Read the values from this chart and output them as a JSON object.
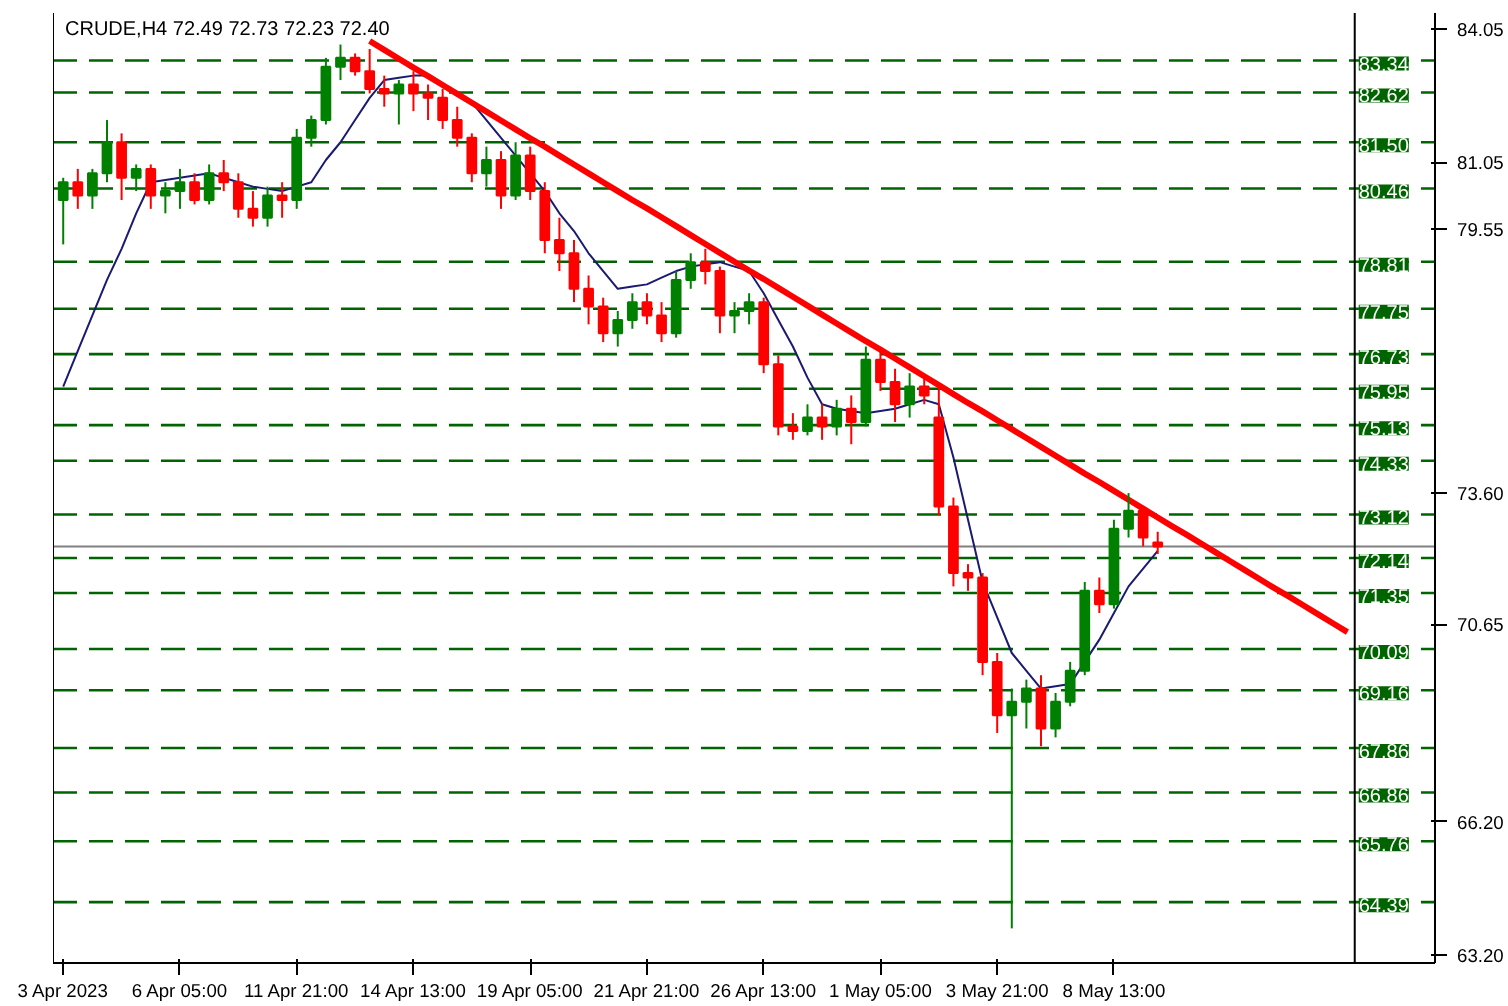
{
  "chart_data": {
    "type": "candlestick",
    "title": "CRUDE,H4  72.49 72.73 72.23 72.40",
    "categories": [
      "3 Apr 2023",
      null,
      null,
      null,
      null,
      null,
      null,
      null,
      "6 Apr 05:00",
      null,
      null,
      null,
      null,
      null,
      null,
      null,
      "11 Apr 21:00",
      null,
      null,
      null,
      null,
      null,
      null,
      null,
      "14 Apr 13:00",
      null,
      null,
      null,
      null,
      null,
      null,
      null,
      "19 Apr 05:00",
      null,
      null,
      null,
      null,
      null,
      null,
      null,
      "21 Apr 21:00",
      null,
      null,
      null,
      null,
      null,
      null,
      null,
      "26 Apr 13:00",
      null,
      null,
      null,
      null,
      null,
      null,
      null,
      "1 May 05:00",
      null,
      null,
      null,
      null,
      null,
      null,
      null,
      "3 May 21:00",
      null,
      null,
      null,
      null,
      null,
      null,
      null,
      "8 May 13:00",
      null,
      null,
      null,
      null,
      null,
      null,
      null,
      null,
      null,
      null,
      null,
      null,
      null,
      null,
      null,
      null
    ],
    "ohlc": [
      [
        80.2,
        80.7,
        79.2,
        80.6
      ],
      [
        80.6,
        80.9,
        80.0,
        80.3
      ],
      [
        80.3,
        80.9,
        80.0,
        80.8
      ],
      [
        80.8,
        82.0,
        80.6,
        81.5
      ],
      [
        81.5,
        81.7,
        80.2,
        80.7
      ],
      [
        80.7,
        81.0,
        80.4,
        80.9
      ],
      [
        80.9,
        81.0,
        80.0,
        80.3
      ],
      [
        80.3,
        80.6,
        79.9,
        80.4
      ],
      [
        80.4,
        80.9,
        80.0,
        80.6
      ],
      [
        80.6,
        80.8,
        80.1,
        80.2
      ],
      [
        80.2,
        81.0,
        80.1,
        80.8
      ],
      [
        80.8,
        81.1,
        80.4,
        80.6
      ],
      [
        80.6,
        80.8,
        79.8,
        80.0
      ],
      [
        80.0,
        80.4,
        79.6,
        79.8
      ],
      [
        79.8,
        80.5,
        79.6,
        80.3
      ],
      [
        80.3,
        80.6,
        79.8,
        80.2
      ],
      [
        80.2,
        81.8,
        80.0,
        81.6
      ],
      [
        81.6,
        82.1,
        81.4,
        82.0
      ],
      [
        82.0,
        83.4,
        81.9,
        83.2
      ],
      [
        83.2,
        83.7,
        82.9,
        83.4
      ],
      [
        83.4,
        83.5,
        83.0,
        83.1
      ],
      [
        83.1,
        83.6,
        82.6,
        82.7
      ],
      [
        82.7,
        83.0,
        82.3,
        82.6
      ],
      [
        82.6,
        82.9,
        81.9,
        82.8
      ],
      [
        82.8,
        83.1,
        82.2,
        82.6
      ],
      [
        82.6,
        82.8,
        82.0,
        82.5
      ],
      [
        82.5,
        82.7,
        81.8,
        82.0
      ],
      [
        82.0,
        82.3,
        81.4,
        81.6
      ],
      [
        81.6,
        81.7,
        80.6,
        80.8
      ],
      [
        80.8,
        81.4,
        80.5,
        81.1
      ],
      [
        81.1,
        81.3,
        80.0,
        80.3
      ],
      [
        80.3,
        81.5,
        80.2,
        81.2
      ],
      [
        81.2,
        81.4,
        80.2,
        80.4
      ],
      [
        80.4,
        80.6,
        79.0,
        79.3
      ],
      [
        79.3,
        79.8,
        78.6,
        79.0
      ],
      [
        79.0,
        79.3,
        77.9,
        78.2
      ],
      [
        78.2,
        78.5,
        77.4,
        77.8
      ],
      [
        77.8,
        78.0,
        77.0,
        77.2
      ],
      [
        77.2,
        77.7,
        76.9,
        77.5
      ],
      [
        77.5,
        78.1,
        77.3,
        77.9
      ],
      [
        77.9,
        78.1,
        77.4,
        77.6
      ],
      [
        77.6,
        77.9,
        77.0,
        77.2
      ],
      [
        77.2,
        78.6,
        77.1,
        78.4
      ],
      [
        78.4,
        79.0,
        78.2,
        78.8
      ],
      [
        78.8,
        79.1,
        78.3,
        78.6
      ],
      [
        78.6,
        78.7,
        77.2,
        77.6
      ],
      [
        77.6,
        77.9,
        77.2,
        77.7
      ],
      [
        77.7,
        78.1,
        77.4,
        77.9
      ],
      [
        77.9,
        78.0,
        76.3,
        76.5
      ],
      [
        76.5,
        76.7,
        74.9,
        75.1
      ],
      [
        75.1,
        75.4,
        74.8,
        75.0
      ],
      [
        75.0,
        75.6,
        74.9,
        75.3
      ],
      [
        75.3,
        75.6,
        74.8,
        75.1
      ],
      [
        75.1,
        75.7,
        74.9,
        75.5
      ],
      [
        75.5,
        75.8,
        74.7,
        75.2
      ],
      [
        75.2,
        76.9,
        75.1,
        76.6
      ],
      [
        76.6,
        76.8,
        75.9,
        76.1
      ],
      [
        76.1,
        76.4,
        75.2,
        75.6
      ],
      [
        75.6,
        76.3,
        75.3,
        76.0
      ],
      [
        76.0,
        76.2,
        75.6,
        75.8
      ],
      [
        75.3,
        76.0,
        73.1,
        73.3
      ],
      [
        73.3,
        73.5,
        71.5,
        71.8
      ],
      [
        71.8,
        72.0,
        71.4,
        71.7
      ],
      [
        71.7,
        71.8,
        69.5,
        69.8
      ],
      [
        69.8,
        70.0,
        68.2,
        68.6
      ],
      [
        68.6,
        69.2,
        63.8,
        68.9
      ],
      [
        68.9,
        69.4,
        68.3,
        69.2
      ],
      [
        69.2,
        69.5,
        67.9,
        68.3
      ],
      [
        68.3,
        69.1,
        68.1,
        68.9
      ],
      [
        68.9,
        69.8,
        68.8,
        69.6
      ],
      [
        69.6,
        71.6,
        69.5,
        71.4
      ],
      [
        71.4,
        71.7,
        70.9,
        71.1
      ],
      [
        71.1,
        73.0,
        71.0,
        72.8
      ],
      [
        72.8,
        73.6,
        72.6,
        73.2
      ],
      [
        73.2,
        73.3,
        72.4,
        72.6
      ],
      [
        72.49,
        72.73,
        72.23,
        72.4
      ],
      null,
      null,
      null,
      null,
      null,
      null,
      null,
      null,
      null,
      null,
      null,
      null,
      null
    ],
    "series": [
      {
        "type": "line",
        "color": "#1a1a70",
        "values": [
          76.0,
          76.8,
          77.6,
          78.4,
          79.1,
          79.9,
          80.6,
          80.65,
          80.7,
          80.75,
          80.8,
          80.7,
          80.6,
          80.5,
          80.45,
          80.4,
          80.5,
          80.6,
          81.1,
          81.5,
          82.0,
          82.5,
          82.9,
          82.95,
          83.0,
          83.0,
          82.8,
          82.6,
          82.4,
          82.0,
          81.6,
          81.2,
          80.8,
          80.4,
          79.9,
          79.5,
          79.0,
          78.6,
          78.2,
          78.25,
          78.3,
          78.45,
          78.6,
          78.7,
          78.75,
          78.8,
          78.7,
          78.6,
          78.1,
          77.5,
          76.9,
          76.2,
          75.6,
          75.5,
          75.45,
          75.4,
          75.45,
          75.5,
          75.6,
          75.7,
          75.6,
          74.4,
          73.0,
          71.6,
          70.8,
          70.0,
          69.6,
          69.2,
          69.25,
          69.3,
          69.8,
          70.3,
          70.9,
          71.5,
          71.9,
          72.3,
          null,
          null,
          null,
          null,
          null,
          null,
          null,
          null,
          null,
          null,
          null,
          null,
          null
        ]
      },
      {
        "type": "line",
        "color": "#ff0000",
        "values": [
          null,
          null,
          null,
          null,
          null,
          null,
          null,
          null,
          null,
          null,
          null,
          null,
          null,
          null,
          null,
          null,
          null,
          null,
          null,
          null,
          null,
          83.78,
          83.58,
          83.38,
          83.18,
          82.99,
          82.79,
          82.59,
          82.39,
          82.19,
          81.99,
          81.79,
          81.59,
          81.4,
          81.2,
          81.0,
          80.8,
          80.6,
          80.4,
          80.2,
          80.01,
          79.81,
          79.61,
          79.41,
          79.21,
          79.01,
          78.81,
          78.61,
          78.42,
          78.22,
          78.02,
          77.82,
          77.62,
          77.42,
          77.22,
          77.02,
          76.83,
          76.63,
          76.43,
          76.23,
          76.03,
          75.83,
          75.63,
          75.44,
          75.24,
          75.04,
          74.84,
          74.64,
          74.44,
          74.24,
          74.04,
          73.85,
          73.65,
          73.45,
          73.25,
          73.05,
          72.85,
          72.66,
          72.46,
          72.26,
          72.06,
          71.86,
          71.66,
          71.46,
          71.27,
          71.07,
          70.87,
          70.67,
          70.47
        ]
      }
    ],
    "ylim": [
      63.02,
      84.41
    ],
    "yticks": [
      {
        "value": 84.05,
        "label": "84.05"
      },
      {
        "value": 81.05,
        "label": "81.05"
      },
      {
        "value": 79.55,
        "label": "79.55"
      },
      {
        "value": 73.6,
        "label": "73.60"
      },
      {
        "value": 70.65,
        "label": "70.65"
      },
      {
        "value": 66.2,
        "label": "66.20"
      },
      {
        "value": 63.2,
        "label": "63.20"
      }
    ],
    "ref_lines": [
      {
        "axis": "y",
        "value": 83.34,
        "label": "83.34",
        "color": "#006400",
        "line_style": "dashed"
      },
      {
        "axis": "y",
        "value": 82.62,
        "label": "82.62",
        "color": "#006400",
        "line_style": "dashed"
      },
      {
        "axis": "y",
        "value": 81.5,
        "label": "81.50",
        "color": "#006400",
        "line_style": "dashed"
      },
      {
        "axis": "y",
        "value": 80.46,
        "label": "80.46",
        "color": "#006400",
        "line_style": "dashed"
      },
      {
        "axis": "y",
        "value": 78.81,
        "label": "78.81",
        "color": "#006400",
        "line_style": "dashed"
      },
      {
        "axis": "y",
        "value": 77.75,
        "label": "77.75",
        "color": "#006400",
        "line_style": "dashed"
      },
      {
        "axis": "y",
        "value": 76.73,
        "label": "76.73",
        "color": "#006400",
        "line_style": "dashed"
      },
      {
        "axis": "y",
        "value": 75.95,
        "label": "75.95",
        "color": "#006400",
        "line_style": "dashed"
      },
      {
        "axis": "y",
        "value": 75.13,
        "label": "75.13",
        "color": "#006400",
        "line_style": "dashed"
      },
      {
        "axis": "y",
        "value": 74.33,
        "label": "74.33",
        "color": "#006400",
        "line_style": "dashed"
      },
      {
        "axis": "y",
        "value": 73.12,
        "label": "73.12",
        "color": "#006400",
        "line_style": "dashed"
      },
      {
        "axis": "y",
        "value": 72.4,
        "color": "#808080",
        "line_style": "solid"
      },
      {
        "axis": "y",
        "value": 72.14,
        "label": "72.14",
        "color": "#006400",
        "line_style": "dashed"
      },
      {
        "axis": "y",
        "value": 71.35,
        "label": "71.35",
        "color": "#006400",
        "line_style": "dashed"
      },
      {
        "axis": "y",
        "value": 70.09,
        "label": "70.09",
        "color": "#006400",
        "line_style": "dashed"
      },
      {
        "axis": "y",
        "value": 69.16,
        "label": "69.16",
        "color": "#006400",
        "line_style": "dashed"
      },
      {
        "axis": "y",
        "value": 67.86,
        "label": "67.86",
        "color": "#006400",
        "line_style": "dashed"
      },
      {
        "axis": "y",
        "value": 66.86,
        "label": "66.86",
        "color": "#006400",
        "line_style": "dashed"
      },
      {
        "axis": "y",
        "value": 65.76,
        "label": "65.76",
        "color": "#006400",
        "line_style": "dashed"
      },
      {
        "axis": "y",
        "value": 64.39,
        "label": "64.39",
        "color": "#006400",
        "line_style": "dashed"
      }
    ]
  }
}
